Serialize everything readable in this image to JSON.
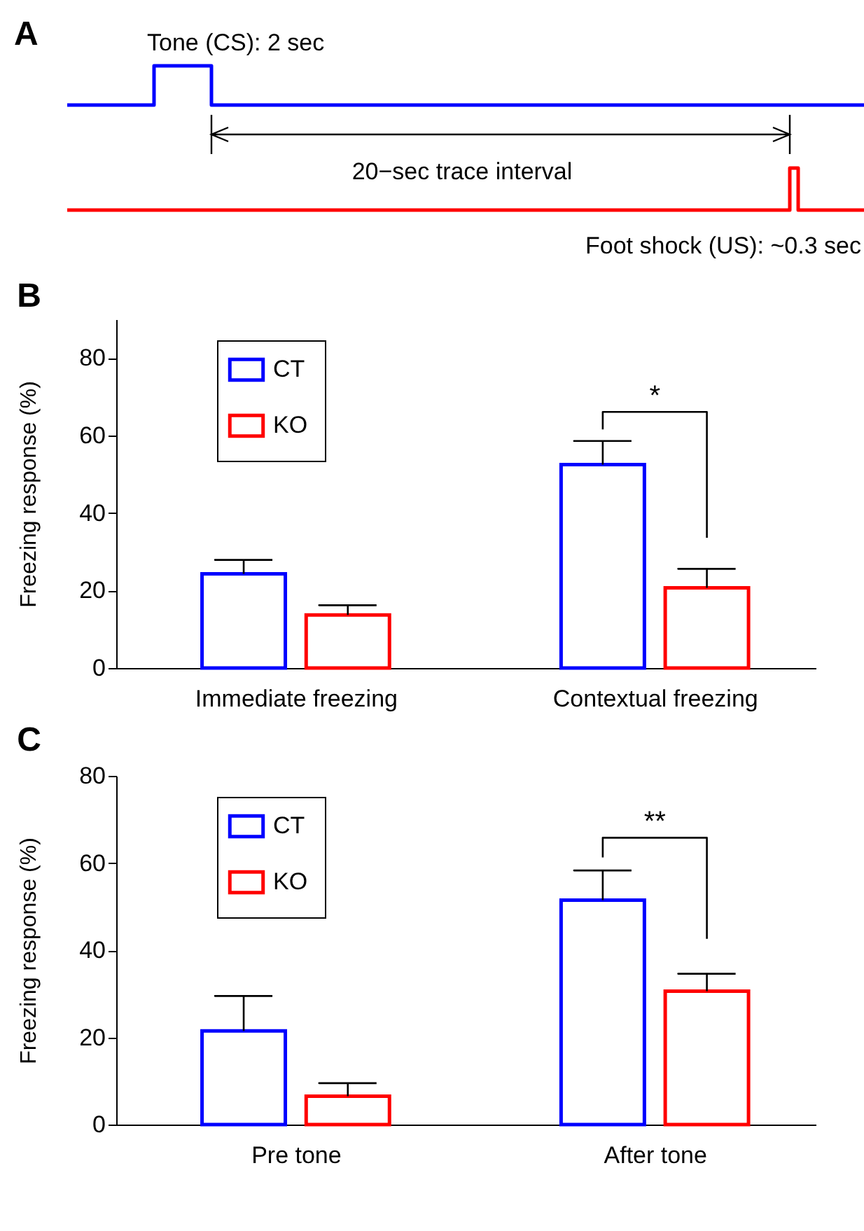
{
  "chart_data": [
    {
      "type": "other",
      "title": "A",
      "annotations": [
        "Tone (CS): 2 sec",
        "20−sec trace interval",
        "Foot shock (US): ~0.3 sec"
      ]
    },
    {
      "type": "bar",
      "title": "B",
      "ylabel": "Freezing response (%)",
      "categories": [
        "Immediate freezing",
        "Contextual freezing"
      ],
      "series": [
        {
          "name": "CT",
          "color": "#0000ff",
          "values": [
            24.3,
            52.5
          ],
          "errors": [
            [
              24.3,
              27.9
            ],
            [
              52.5,
              58.6
            ]
          ]
        },
        {
          "name": "KO",
          "color": "#ff0000",
          "values": [
            13.7,
            20.7
          ],
          "errors": [
            [
              13.7,
              16.2
            ],
            [
              20.7,
              25.6
            ]
          ]
        }
      ],
      "ylim": [
        0,
        90
      ],
      "yticks": [
        0,
        20,
        40,
        60,
        80
      ],
      "legend": "top left",
      "annotations": [
        "*"
      ]
    },
    {
      "type": "bar",
      "title": "C",
      "ylabel": "Freezing response (%)",
      "categories": [
        "Pre tone",
        "After tone"
      ],
      "series": [
        {
          "name": "CT",
          "color": "#0000ff",
          "values": [
            21.5,
            51.5
          ],
          "errors": [
            [
              21.5,
              29.5
            ],
            [
              51.5,
              58.3
            ]
          ]
        },
        {
          "name": "KO",
          "color": "#ff0000",
          "values": [
            6.5,
            30.6
          ],
          "errors": [
            [
              6.5,
              9.5
            ],
            [
              30.6,
              34.6
            ]
          ]
        }
      ],
      "ylim": [
        0,
        80
      ],
      "yticks": [
        0,
        20,
        40,
        60,
        80
      ],
      "legend": "top left",
      "annotations": [
        "**"
      ]
    }
  ]
}
